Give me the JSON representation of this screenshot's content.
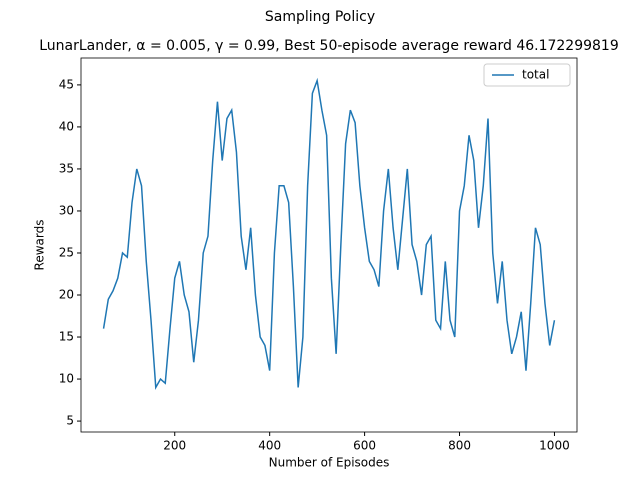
{
  "chart_data": {
    "type": "line",
    "title": "Sampling Policy",
    "subtitle": "LunarLander, α = 0.005, γ = 0.99, Best 50-episode average reward 46.172299819",
    "x_label": "Number of Episodes",
    "y_label": "Rewards",
    "x": [
      50,
      60,
      70,
      80,
      90,
      100,
      110,
      120,
      130,
      140,
      150,
      160,
      170,
      180,
      190,
      200,
      210,
      220,
      230,
      240,
      250,
      260,
      270,
      280,
      290,
      300,
      310,
      320,
      330,
      340,
      350,
      360,
      370,
      380,
      390,
      400,
      410,
      420,
      430,
      440,
      450,
      460,
      470,
      480,
      490,
      500,
      510,
      520,
      530,
      540,
      550,
      560,
      570,
      580,
      590,
      600,
      610,
      620,
      630,
      640,
      650,
      660,
      670,
      680,
      690,
      700,
      710,
      720,
      730,
      740,
      750,
      760,
      770,
      780,
      790,
      800,
      810,
      820,
      830,
      840,
      850,
      860,
      870,
      880,
      890,
      900,
      910,
      920,
      930,
      940,
      950,
      960,
      970,
      980,
      990,
      1000
    ],
    "series": [
      {
        "name": "total",
        "color": "#1f77b4",
        "values": [
          16,
          19.5,
          20.5,
          22,
          25,
          24.5,
          31,
          35,
          33,
          24,
          17,
          9,
          10,
          9.5,
          16,
          22,
          24,
          20,
          18,
          12,
          17,
          25,
          27,
          36,
          43,
          36,
          41,
          42,
          37,
          27,
          23,
          28,
          20,
          15,
          14,
          11,
          25,
          33,
          33,
          31,
          21,
          9,
          15,
          33,
          44,
          45.5,
          42,
          39,
          22,
          13,
          26,
          38,
          42,
          40.5,
          33,
          28,
          24,
          23,
          21,
          30,
          35,
          28,
          23,
          29,
          35,
          26,
          24,
          20,
          26,
          27,
          17,
          16,
          24,
          17,
          15,
          30,
          33,
          39,
          36,
          28,
          33,
          41,
          25,
          19,
          24,
          17,
          13,
          15,
          18,
          11,
          19,
          28,
          26,
          19,
          14,
          17
        ]
      }
    ],
    "xlim": [
      2.5,
      1047.5
    ],
    "ylim": [
      3.7,
      48.2
    ],
    "xticks": [
      200,
      400,
      600,
      800,
      1000
    ],
    "yticks": [
      5,
      10,
      15,
      20,
      25,
      30,
      35,
      40,
      45
    ],
    "legend": "upper right"
  }
}
